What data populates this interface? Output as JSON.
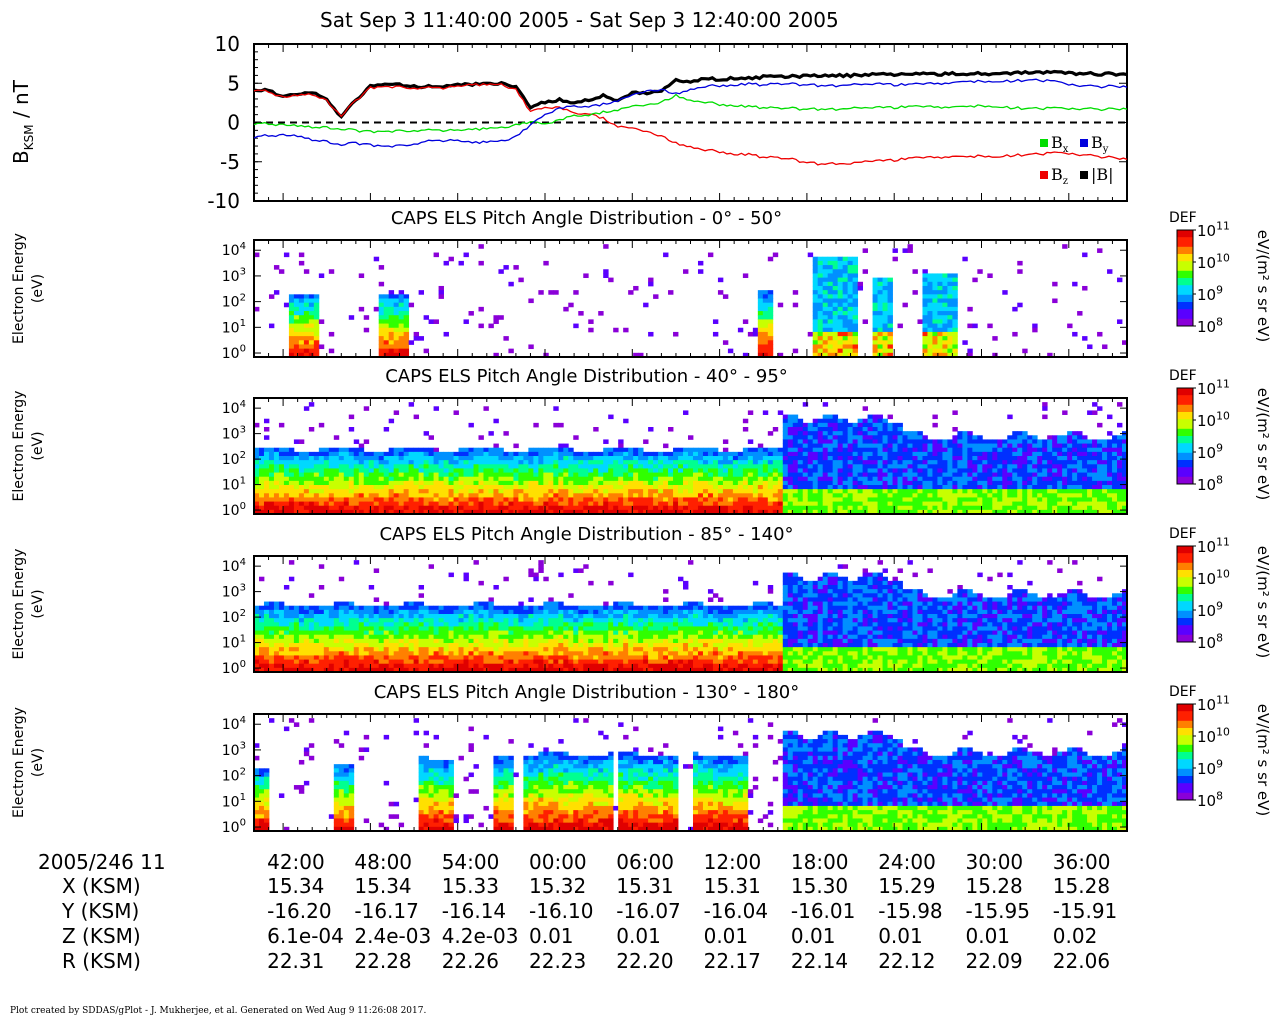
{
  "title": "Sat Sep 3 11:40:00 2005 - Sat Sep 3 12:40:00 2005",
  "footer": "Plot created by SDDAS/gPlot - J. Mukherjee, et al.  Generated on Wed Aug 9 11:26:08 2017.",
  "colors": {
    "bx": "#00dd00",
    "by": "#0000dd",
    "bz": "#ee0000",
    "btot": "#000000",
    "colormap": [
      "#8a00d8",
      "#5a00ff",
      "#0030ff",
      "#0090ff",
      "#00d8ff",
      "#00ff90",
      "#30ff00",
      "#c8ff00",
      "#ffe000",
      "#ff8000",
      "#ff2000",
      "#e00000"
    ]
  },
  "chart_data": [
    {
      "type": "line",
      "ylabel_base": "B",
      "ylabel_sub": "KSM",
      "ylabel_unit": " / nT",
      "ylim": [
        -10,
        10
      ],
      "yticks": [
        "10",
        "5",
        "0",
        "-5",
        "-10"
      ],
      "xlim_minutes": [
        0,
        60
      ],
      "zero_line": "dashed",
      "legend": {
        "placement": "bottom-right",
        "entries": [
          {
            "key": "bx",
            "label_main": "B",
            "label_sub": "x"
          },
          {
            "key": "by",
            "label_main": "B",
            "label_sub": "y"
          },
          {
            "key": "bz",
            "label_main": "B",
            "label_sub": "z"
          },
          {
            "key": "btot",
            "label_main": "|B|",
            "label_sub": ""
          }
        ]
      },
      "series": [
        {
          "key": "btot",
          "x": [
            0,
            1,
            2,
            3,
            4,
            5,
            6,
            7,
            8,
            9,
            10,
            11,
            12,
            13,
            14,
            15,
            16,
            17,
            18,
            19,
            20,
            21,
            22,
            23,
            24,
            25,
            26,
            27,
            28,
            29,
            30,
            31,
            32,
            33,
            34,
            35,
            36,
            37,
            38,
            39,
            40,
            41,
            42,
            43,
            44,
            45,
            46,
            47,
            48,
            49,
            50,
            51,
            52,
            53,
            54,
            55,
            56,
            57,
            58,
            59,
            60
          ],
          "y": [
            4.3,
            4.0,
            3.3,
            3.6,
            3.8,
            2.8,
            0.8,
            2.9,
            4.6,
            4.9,
            4.8,
            4.6,
            4.6,
            4.6,
            4.8,
            4.9,
            4.9,
            5.0,
            4.6,
            2.0,
            2.6,
            2.9,
            2.4,
            2.9,
            3.4,
            2.8,
            3.8,
            3.7,
            4.1,
            5.3,
            5.2,
            5.6,
            5.5,
            5.6,
            5.6,
            5.8,
            5.9,
            5.9,
            5.9,
            6.0,
            6.0,
            6.0,
            6.1,
            6.1,
            6.1,
            6.1,
            6.2,
            6.2,
            6.2,
            6.2,
            6.2,
            6.3,
            6.3,
            6.4,
            6.4,
            6.4,
            6.3,
            6.2,
            6.2,
            6.2,
            6.1
          ]
        },
        {
          "key": "bz",
          "x": [
            0,
            1,
            2,
            3,
            4,
            5,
            6,
            7,
            8,
            9,
            10,
            11,
            12,
            13,
            14,
            15,
            16,
            17,
            18,
            19,
            20,
            21,
            22,
            23,
            24,
            25,
            26,
            27,
            28,
            29,
            30,
            31,
            32,
            33,
            34,
            35,
            36,
            37,
            38,
            39,
            40,
            41,
            42,
            43,
            44,
            45,
            46,
            47,
            48,
            49,
            50,
            51,
            52,
            53,
            54,
            55,
            56,
            57,
            58,
            59,
            60
          ],
          "y": [
            4.2,
            3.9,
            3.2,
            3.5,
            3.6,
            2.7,
            0.9,
            2.8,
            4.4,
            4.5,
            4.5,
            4.4,
            4.4,
            4.4,
            4.7,
            4.8,
            4.8,
            4.8,
            4.2,
            1.4,
            1.9,
            2.0,
            1.1,
            1.2,
            0.5,
            -0.5,
            -0.8,
            -1.2,
            -1.7,
            -2.7,
            -3.1,
            -3.5,
            -3.7,
            -4.0,
            -4.1,
            -4.4,
            -4.5,
            -4.7,
            -5.1,
            -5.3,
            -5.2,
            -5.3,
            -5.0,
            -4.9,
            -4.8,
            -4.6,
            -4.5,
            -4.4,
            -4.3,
            -4.4,
            -4.3,
            -4.3,
            -4.2,
            -4.1,
            -4.0,
            -3.9,
            -4.0,
            -4.2,
            -4.3,
            -4.5,
            -4.7
          ]
        },
        {
          "key": "bx",
          "x": [
            0,
            1,
            2,
            3,
            4,
            5,
            6,
            7,
            8,
            9,
            10,
            11,
            12,
            13,
            14,
            15,
            16,
            17,
            18,
            19,
            20,
            21,
            22,
            23,
            24,
            25,
            26,
            27,
            28,
            29,
            30,
            31,
            32,
            33,
            34,
            35,
            36,
            37,
            38,
            39,
            40,
            41,
            42,
            43,
            44,
            45,
            46,
            47,
            48,
            49,
            50,
            51,
            52,
            53,
            54,
            55,
            56,
            57,
            58,
            59,
            60
          ],
          "y": [
            -0.1,
            -0.2,
            -0.3,
            -0.4,
            -0.6,
            -0.7,
            -0.8,
            -1.0,
            -1.2,
            -1.2,
            -1.1,
            -1.0,
            -1.0,
            -1.0,
            -0.9,
            -0.9,
            -0.8,
            -0.7,
            -0.3,
            0.1,
            -0.2,
            0.4,
            0.8,
            1.0,
            1.3,
            1.6,
            2.0,
            2.2,
            2.6,
            3.4,
            2.8,
            2.6,
            2.3,
            2.2,
            2.0,
            1.9,
            1.8,
            1.8,
            1.7,
            1.7,
            1.7,
            1.8,
            1.8,
            1.9,
            1.9,
            2.0,
            2.0,
            2.0,
            2.0,
            2.0,
            2.1,
            2.1,
            1.9,
            1.8,
            1.8,
            1.8,
            1.7,
            1.7,
            1.7,
            1.7,
            1.7
          ]
        },
        {
          "key": "by",
          "x": [
            0,
            1,
            2,
            3,
            4,
            5,
            6,
            7,
            8,
            9,
            10,
            11,
            12,
            13,
            14,
            15,
            16,
            17,
            18,
            19,
            20,
            21,
            22,
            23,
            24,
            25,
            26,
            27,
            28,
            29,
            30,
            31,
            32,
            33,
            34,
            35,
            36,
            37,
            38,
            39,
            40,
            41,
            42,
            43,
            44,
            45,
            46,
            47,
            48,
            49,
            50,
            51,
            52,
            53,
            54,
            55,
            56,
            57,
            58,
            59,
            60
          ],
          "y": [
            -1.8,
            -1.7,
            -1.6,
            -1.7,
            -2.2,
            -2.5,
            -2.8,
            -2.6,
            -2.9,
            -3.1,
            -3.0,
            -2.7,
            -2.4,
            -2.3,
            -2.2,
            -2.6,
            -2.5,
            -2.4,
            -1.8,
            -0.3,
            1.0,
            1.9,
            2.0,
            2.1,
            2.3,
            2.8,
            3.4,
            4.0,
            4.2,
            3.6,
            4.2,
            4.6,
            4.7,
            4.8,
            4.9,
            4.8,
            4.9,
            4.9,
            4.8,
            4.7,
            4.7,
            4.8,
            4.8,
            4.9,
            4.8,
            4.8,
            4.9,
            5.0,
            5.1,
            5.2,
            5.2,
            5.3,
            5.3,
            5.4,
            5.4,
            5.2,
            4.8,
            4.6,
            4.6,
            4.6,
            4.5
          ]
        }
      ]
    },
    {
      "type": "heatmap",
      "title": "CAPS ELS Pitch Angle Distribution - 0° - 50°",
      "ylabel": [
        "Electron Energy",
        "(eV)"
      ],
      "y_scale": "log",
      "ylim_eV": [
        0.7,
        25000
      ],
      "yticks": [
        {
          "base": "10",
          "exp": "4"
        },
        {
          "base": "10",
          "exp": "3"
        },
        {
          "base": "10",
          "exp": "2"
        },
        {
          "base": "10",
          "exp": "1"
        },
        {
          "base": "10",
          "exp": "0"
        }
      ],
      "colorbar": {
        "label": "DEF",
        "unit": "eV/(m² s sr eV)",
        "range_log10": [
          8,
          11
        ],
        "ticks": [
          {
            "base": "10",
            "exp": "11"
          },
          {
            "base": "10",
            "exp": "10"
          },
          {
            "base": "10",
            "exp": "9"
          },
          {
            "base": "10",
            "exp": "8"
          }
        ]
      },
      "segments": [
        {
          "t": [
            2.5,
            4.5
          ],
          "emax_eV": 220
        },
        {
          "t": [
            8.5,
            10.5
          ],
          "emax_eV": 220
        },
        {
          "t": [
            34.5,
            35.5
          ],
          "emax_eV": 250
        },
        {
          "t": [
            38.5,
            41.5
          ],
          "emax_eV": 6000
        },
        {
          "t": [
            42.5,
            44
          ],
          "emax_eV": 1000
        },
        {
          "t": [
            46,
            48.5
          ],
          "emax_eV": 1500
        }
      ]
    },
    {
      "type": "heatmap",
      "title": "CAPS ELS Pitch Angle Distribution - 40° - 95°",
      "ylabel": [
        "Electron Energy",
        "(eV)"
      ],
      "y_scale": "log",
      "ylim_eV": [
        0.7,
        25000
      ],
      "yticks": [
        {
          "base": "10",
          "exp": "4"
        },
        {
          "base": "10",
          "exp": "3"
        },
        {
          "base": "10",
          "exp": "2"
        },
        {
          "base": "10",
          "exp": "1"
        },
        {
          "base": "10",
          "exp": "0"
        }
      ],
      "colorbar": {
        "label": "DEF",
        "unit": "eV/(m² s sr eV)",
        "range_log10": [
          8,
          11
        ],
        "ticks": [
          {
            "base": "10",
            "exp": "11"
          },
          {
            "base": "10",
            "exp": "10"
          },
          {
            "base": "10",
            "exp": "9"
          },
          {
            "base": "10",
            "exp": "8"
          }
        ]
      },
      "segments": [
        {
          "t": [
            0,
            60
          ],
          "emax_eV": 250
        }
      ]
    },
    {
      "type": "heatmap",
      "title": "CAPS ELS Pitch Angle Distribution - 85° - 140°",
      "ylabel": [
        "Electron Energy",
        "(eV)"
      ],
      "y_scale": "log",
      "ylim_eV": [
        0.7,
        25000
      ],
      "yticks": [
        {
          "base": "10",
          "exp": "4"
        },
        {
          "base": "10",
          "exp": "3"
        },
        {
          "base": "10",
          "exp": "2"
        },
        {
          "base": "10",
          "exp": "1"
        },
        {
          "base": "10",
          "exp": "0"
        }
      ],
      "colorbar": {
        "label": "DEF",
        "unit": "eV/(m² s sr eV)",
        "range_log10": [
          8,
          11
        ],
        "ticks": [
          {
            "base": "10",
            "exp": "11"
          },
          {
            "base": "10",
            "exp": "10"
          },
          {
            "base": "10",
            "exp": "9"
          },
          {
            "base": "10",
            "exp": "8"
          }
        ]
      },
      "segments": [
        {
          "t": [
            0,
            60
          ],
          "emax_eV": 300
        }
      ]
    },
    {
      "type": "heatmap",
      "title": "CAPS ELS Pitch Angle Distribution - 130° - 180°",
      "ylabel": [
        "Electron Energy",
        "(eV)"
      ],
      "y_scale": "log",
      "ylim_eV": [
        0.7,
        25000
      ],
      "yticks": [
        {
          "base": "10",
          "exp": "4"
        },
        {
          "base": "10",
          "exp": "3"
        },
        {
          "base": "10",
          "exp": "2"
        },
        {
          "base": "10",
          "exp": "1"
        },
        {
          "base": "10",
          "exp": "0"
        }
      ],
      "colorbar": {
        "label": "DEF",
        "unit": "eV/(m² s sr eV)",
        "range_log10": [
          8,
          11
        ],
        "ticks": [
          {
            "base": "10",
            "exp": "11"
          },
          {
            "base": "10",
            "exp": "10"
          },
          {
            "base": "10",
            "exp": "9"
          },
          {
            "base": "10",
            "exp": "8"
          }
        ]
      },
      "segments": [
        {
          "t": [
            0,
            1.2
          ],
          "emax_eV": 180
        },
        {
          "t": [
            5.5,
            7
          ],
          "emax_eV": 250
        },
        {
          "t": [
            11.2,
            13.8
          ],
          "emax_eV": 500
        },
        {
          "t": [
            16.3,
            17.8
          ],
          "emax_eV": 600
        },
        {
          "t": [
            18.5,
            24.8
          ],
          "emax_eV": 700
        },
        {
          "t": [
            25,
            29.3
          ],
          "emax_eV": 700
        },
        {
          "t": [
            30.2,
            34
          ],
          "emax_eV": 600
        },
        {
          "t": [
            37.5,
            39.3
          ],
          "emax_eV": 1200
        },
        {
          "t": [
            51,
            53.5
          ],
          "emax_eV": 1000
        },
        {
          "t": [
            56.5,
            58.5
          ],
          "emax_eV": 2500
        },
        {
          "t": [
            59.2,
            60
          ],
          "emax_eV": 1500
        }
      ]
    }
  ],
  "ephemeris": {
    "date_label": "2005/246 11",
    "rows": [
      {
        "label": "X (KSM)",
        "values": [
          "15.34",
          "15.34",
          "15.33",
          "15.32",
          "15.31",
          "15.31",
          "15.30",
          "15.29",
          "15.28",
          "15.28"
        ]
      },
      {
        "label": "Y (KSM)",
        "values": [
          "-16.20",
          "-16.17",
          "-16.14",
          "-16.10",
          "-16.07",
          "-16.04",
          "-16.01",
          "-15.98",
          "-15.95",
          "-15.91"
        ]
      },
      {
        "label": "Z (KSM)",
        "values": [
          "6.1e-04",
          "2.4e-03",
          "4.2e-03",
          "0.01",
          "0.01",
          "0.01",
          "0.01",
          "0.01",
          "0.01",
          "0.02"
        ]
      },
      {
        "label": "R (KSM)",
        "values": [
          "22.31",
          "22.28",
          "22.26",
          "22.23",
          "22.20",
          "22.17",
          "22.14",
          "22.12",
          "22.09",
          "22.06"
        ]
      }
    ],
    "time_labels": [
      "42:00",
      "48:00",
      "54:00",
      "00:00",
      "06:00",
      "12:00",
      "18:00",
      "24:00",
      "30:00",
      "36:00"
    ],
    "time_label_minutes": [
      2,
      8,
      14,
      20,
      26,
      32,
      38,
      44,
      50,
      56
    ]
  }
}
